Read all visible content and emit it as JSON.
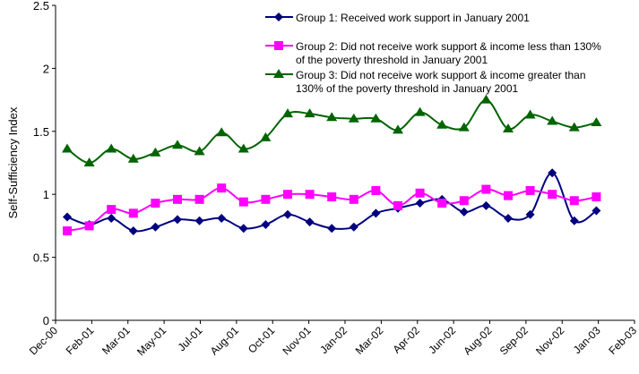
{
  "chart_data": {
    "type": "line",
    "title": "",
    "xlabel": "",
    "ylabel": "Self-Sufficiency Index",
    "ylim": [
      0,
      2.5
    ],
    "yticks": [
      "0",
      "0.5",
      "1",
      "1.5",
      "2",
      "2.5"
    ],
    "xticks": [
      "Dec-00",
      "Feb-01",
      "Mar-01",
      "May-01",
      "Jul-01",
      "Aug-01",
      "Oct-01",
      "Nov-01",
      "Jan-02",
      "Mar-02",
      "Apr-02",
      "Jun-02",
      "Aug-02",
      "Sep-02",
      "Nov-02",
      "Jan-03",
      "Feb-03"
    ],
    "grid": false,
    "legend": "top-right",
    "x": [
      "Jan-01",
      "Feb-01",
      "Mar-01",
      "Apr-01",
      "May-01",
      "Jun-01",
      "Jul-01",
      "Aug-01",
      "Sep-01",
      "Oct-01",
      "Nov-01",
      "Dec-01",
      "Jan-02",
      "Feb-02",
      "Mar-02",
      "Apr-02",
      "May-02",
      "Jun-02",
      "Jul-02",
      "Aug-02",
      "Sep-02",
      "Oct-02",
      "Nov-02",
      "Dec-02",
      "Jan-03"
    ],
    "series": [
      {
        "name": "Group 1: Received work support in January 2001",
        "legend_lines": [
          "Group 1: Received work support in January 2001"
        ],
        "color": "#000080",
        "marker": "diamond",
        "values": [
          0.82,
          0.76,
          0.81,
          0.71,
          0.74,
          0.8,
          0.79,
          0.81,
          0.73,
          0.76,
          0.84,
          0.78,
          0.73,
          0.74,
          0.85,
          0.89,
          0.93,
          0.96,
          0.86,
          0.91,
          0.81,
          0.84,
          1.17,
          0.79,
          0.87
        ]
      },
      {
        "name": "Group 2: Did not receive work support & income less than 130% of the poverty threshold in January 2001",
        "legend_lines": [
          "Group 2: Did not receive work support & income less than 130%",
          "of the poverty threshold in January 2001"
        ],
        "color": "#FF00FF",
        "marker": "square",
        "values": [
          0.71,
          0.75,
          0.88,
          0.85,
          0.93,
          0.96,
          0.96,
          1.05,
          0.94,
          0.96,
          1.0,
          1.0,
          0.98,
          0.96,
          1.03,
          0.91,
          1.01,
          0.93,
          0.95,
          1.04,
          0.99,
          1.03,
          1.0,
          0.95,
          0.98
        ]
      },
      {
        "name": "Group 3: Did not receive work support & income greater than 130% of the poverty threshold in January 2001",
        "legend_lines": [
          "Group 3: Did not receive work support & income greater than",
          "130% of the poverty threshold in January 2001"
        ],
        "color": "#006400",
        "marker": "triangle",
        "values": [
          1.36,
          1.25,
          1.36,
          1.28,
          1.33,
          1.39,
          1.34,
          1.49,
          1.36,
          1.45,
          1.64,
          1.64,
          1.61,
          1.6,
          1.6,
          1.51,
          1.65,
          1.55,
          1.53,
          1.75,
          1.52,
          1.63,
          1.58,
          1.53,
          1.57
        ]
      }
    ]
  }
}
